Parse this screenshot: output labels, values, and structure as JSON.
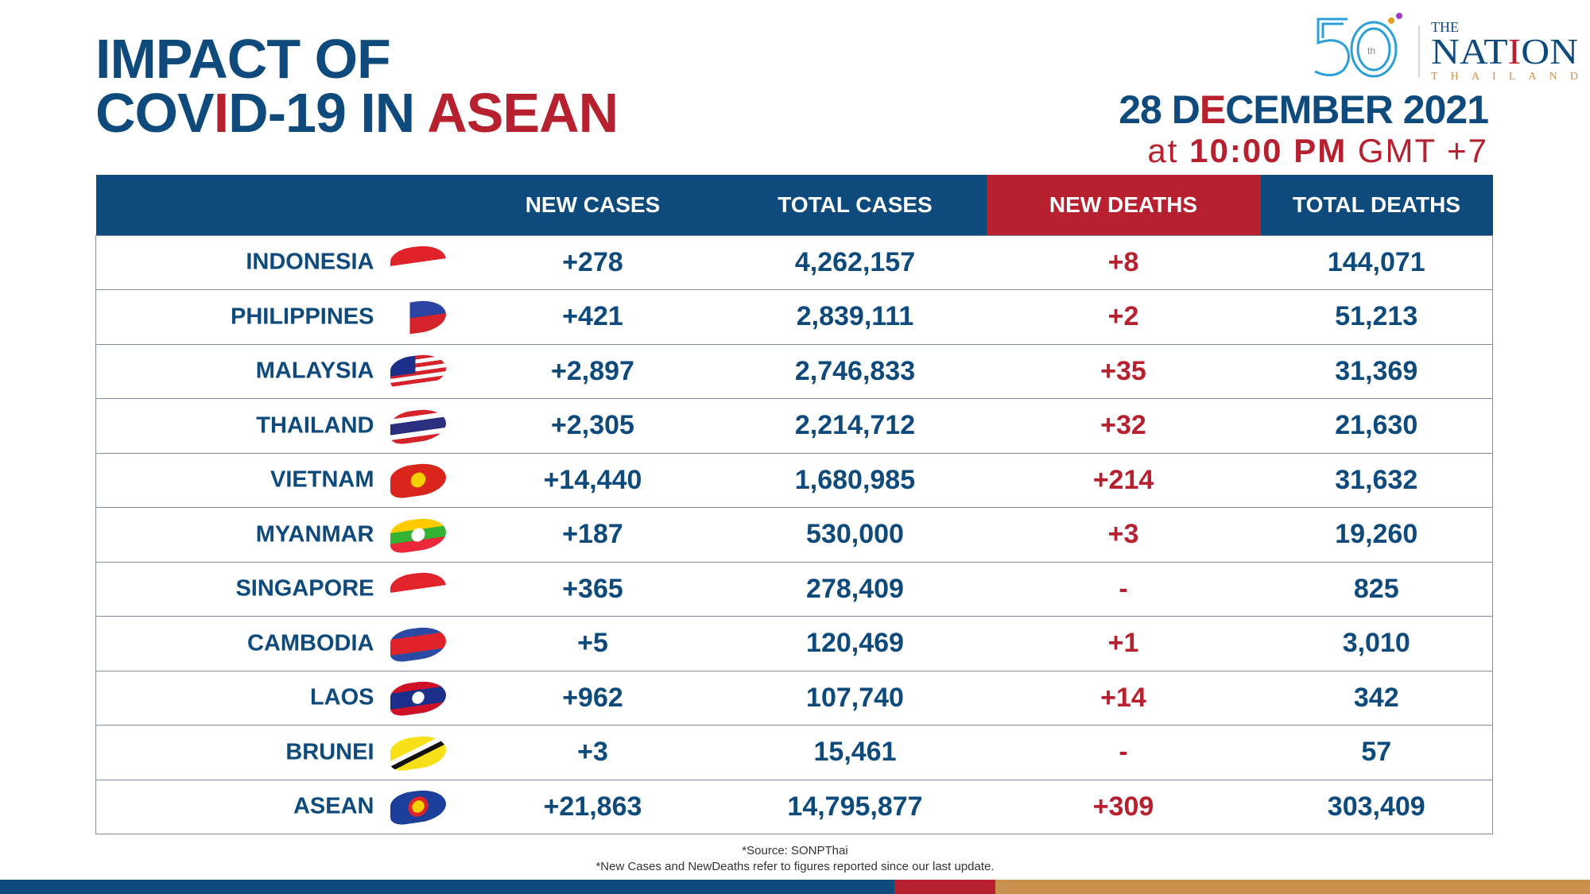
{
  "title": {
    "line1": "IMPACT OF",
    "line2_a": "COV",
    "line2_b": "I",
    "line2_c": "D-19 IN ",
    "line2_d": "ASEAN"
  },
  "logo": {
    "text": "THE NATION THAILAND 50th"
  },
  "date": {
    "day": "28 D",
    "e": "E",
    "rest": "CEMBER 2021",
    "at": "at ",
    "time": "10:00 PM",
    "tz": " GMT +7"
  },
  "columns": [
    "",
    "NEW CASES",
    "TOTAL CASES",
    "NEW DEATHS",
    "TOTAL DEATHS"
  ],
  "rows": [
    {
      "country": "INDONESIA",
      "new_cases": "+278",
      "total_cases": "4,262,157",
      "new_deaths": "+8",
      "total_deaths": "144,071",
      "flag": "linear-gradient(#e0232b 50%,#fff 50%)"
    },
    {
      "country": "PHILIPPINES",
      "new_cases": "+421",
      "total_cases": "2,839,111",
      "new_deaths": "+2",
      "total_deaths": "51,213",
      "flag": "linear-gradient(90deg,#fff 35%,transparent 35%),linear-gradient(#2b43a3 50%,#d6232b 50%)"
    },
    {
      "country": "MALAYSIA",
      "new_cases": "+2,897",
      "total_cases": "2,746,833",
      "new_deaths": "+35",
      "total_deaths": "31,369",
      "flag": "linear-gradient(90deg,#1b2f8a 45%,transparent 45%) 0 0/100% 55% no-repeat,repeating-linear-gradient(#d6232b 0 5px,#fff 5px 10px)"
    },
    {
      "country": "THAILAND",
      "new_cases": "+2,305",
      "total_cases": "2,214,712",
      "new_deaths": "+32",
      "total_deaths": "21,630",
      "flag": "linear-gradient(#d6232b 17%,#fff 17% 33%,#2b2f80 33% 67%,#fff 67% 83%,#d6232b 83%)"
    },
    {
      "country": "VIETNAM",
      "new_cases": "+14,440",
      "total_cases": "1,680,985",
      "new_deaths": "+214",
      "total_deaths": "31,632",
      "flag": "radial-gradient(circle,#f6d100 22%,#da251d 24%)"
    },
    {
      "country": "MYANMAR",
      "new_cases": "+187",
      "total_cases": "530,000",
      "new_deaths": "+3",
      "total_deaths": "19,260",
      "flag": "radial-gradient(circle,#fff 20%,transparent 22%),linear-gradient(#fecb00 33%,#34b233 33% 67%,#ea2839 67%)"
    },
    {
      "country": "SINGAPORE",
      "new_cases": "+365",
      "total_cases": "278,409",
      "new_deaths": "-",
      "total_deaths": "825",
      "flag": "linear-gradient(#e2232b 50%,#fff 50%)"
    },
    {
      "country": "CAMBODIA",
      "new_cases": "+5",
      "total_cases": "120,469",
      "new_deaths": "+1",
      "total_deaths": "3,010",
      "flag": "linear-gradient(#2b4aa3 25%,#e0232b 25% 75%,#2b4aa3 75%)"
    },
    {
      "country": "LAOS",
      "new_cases": "+962",
      "total_cases": "107,740",
      "new_deaths": "+14",
      "total_deaths": "342",
      "flag": "radial-gradient(circle,#fff 18%,transparent 20%),linear-gradient(#ce1126 25%,#1b2f8a 25% 75%,#ce1126 75%)"
    },
    {
      "country": "BRUNEI",
      "new_cases": "+3",
      "total_cases": "15,461",
      "new_deaths": "-",
      "total_deaths": "57",
      "flag": "linear-gradient(160deg,#f7e017 40%,#fff 40% 50%,#111 50% 60%,#f7e017 60%)"
    },
    {
      "country": "ASEAN",
      "new_cases": "+21,863",
      "total_cases": "14,795,877",
      "new_deaths": "+309",
      "total_deaths": "303,409",
      "flag": "radial-gradient(circle,#f6d100 18%,#e0232b 20% 30%,#1b3f9a 32%)"
    }
  ],
  "footer": {
    "source": "*Source: SONPThai",
    "note": "*New Cases and NewDeaths refer to figures reported since our last update."
  },
  "colors": {
    "blue": "#0e4a7b",
    "red": "#b7202e",
    "tan": "#c9914d"
  }
}
